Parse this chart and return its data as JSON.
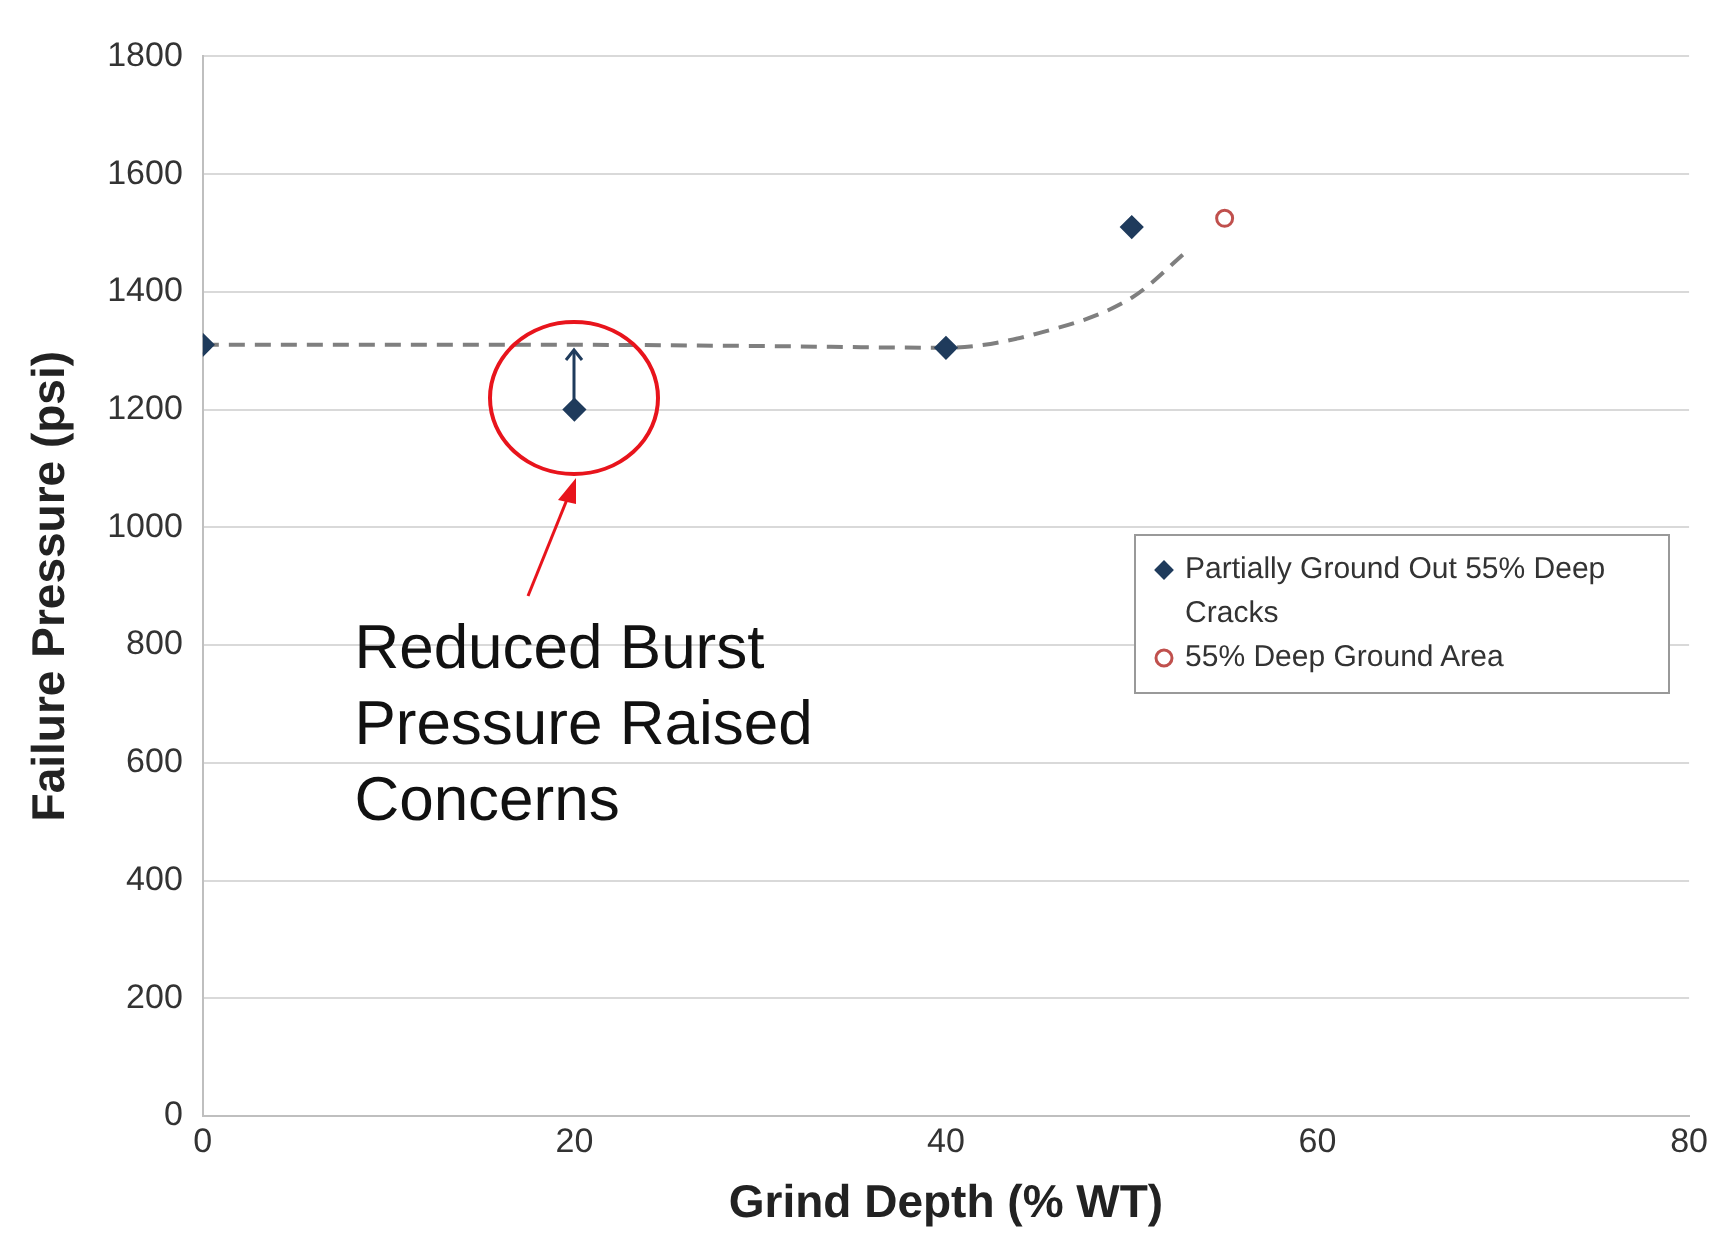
{
  "chart_data": {
    "type": "scatter",
    "xlabel": "Grind Depth (% WT)",
    "ylabel": "Failure Pressure (psi)",
    "xlim": [
      0,
      80
    ],
    "xticks": [
      0,
      20,
      40,
      60,
      80
    ],
    "ylim": [
      0,
      1800
    ],
    "yticks": [
      0,
      200,
      400,
      600,
      800,
      1000,
      1200,
      1400,
      1600,
      1800
    ],
    "grid": "y",
    "legend": "right",
    "series": [
      {
        "name": "Partially Ground Out 55% Deep Cracks",
        "color": "#1f3b5c",
        "marker": "diamond",
        "x": [
          0,
          20,
          40,
          50
        ],
        "values": [
          1310,
          1200,
          1305,
          1510
        ]
      },
      {
        "name": "55% Deep Ground Area",
        "color": "#c0504d",
        "marker": "circle",
        "x": [
          55
        ],
        "values": [
          1525
        ]
      },
      {
        "type": "line",
        "color": "#7f7f7f",
        "marker": "none",
        "line_style": "dashed",
        "x": [
          0,
          10,
          20,
          30,
          40,
          45,
          50,
          53
        ],
        "values": [
          1310,
          1310,
          1310,
          1308,
          1305,
          1330,
          1390,
          1470
        ]
      }
    ],
    "annotations": [
      "Reduced Burst Pressure Raised Concerns"
    ]
  }
}
